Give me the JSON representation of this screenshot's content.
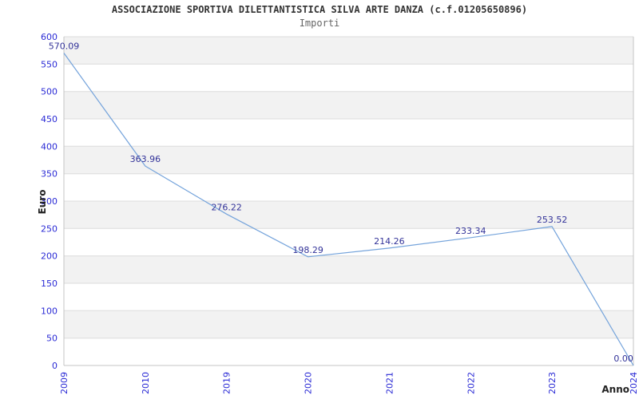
{
  "chart_data": {
    "type": "line",
    "title": "ASSOCIAZIONE SPORTIVA DILETTANTISTICA SILVA ARTE DANZA (c.f.01205650896)",
    "subtitle": "Importi",
    "xlabel": "Anno",
    "ylabel": "Euro",
    "categories": [
      "2009",
      "2010",
      "2019",
      "2020",
      "2021",
      "2022",
      "2023",
      "2024"
    ],
    "values": [
      570.09,
      363.96,
      276.22,
      198.29,
      214.26,
      233.34,
      253.52,
      0.0
    ],
    "point_labels": [
      "570.09",
      "363.96",
      "276.22",
      "198.29",
      "214.26",
      "233.34",
      "253.52",
      "0.00"
    ],
    "ylim": [
      0,
      600
    ],
    "ytick_step": 50,
    "grid": true,
    "alternating_bands": true,
    "legend_position": "none",
    "colors": {
      "line": "#74a3db",
      "tick_label": "#2b2bd5",
      "point_label": "#333399",
      "band": "#f2f2f2",
      "gridline": "#dcdcdc",
      "axis_border": "#c4c4c4",
      "title": "#333333",
      "subtitle": "#666666",
      "axis_title": "#222222",
      "background": "#ffffff"
    }
  }
}
